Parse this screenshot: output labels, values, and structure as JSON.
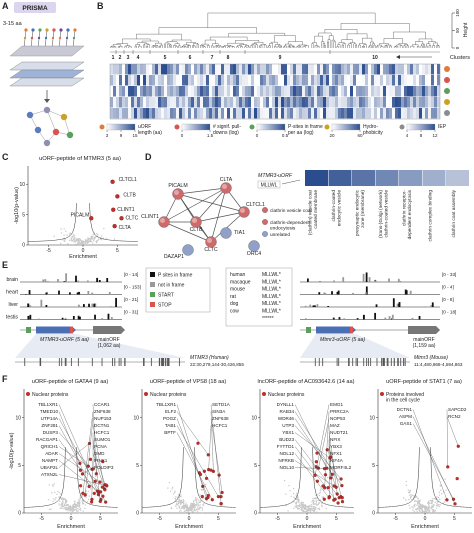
{
  "A": {
    "label": "A",
    "title": "PRISMA",
    "length": "3-15 aa"
  },
  "B": {
    "label": "B",
    "height_label": "Height",
    "height_ticks": [
      0,
      50,
      100
    ],
    "clusters": [
      "1",
      "2",
      "3",
      "4",
      "5",
      "6",
      "7",
      "8",
      "9",
      "10"
    ],
    "clusters_label": "Clusters",
    "legend": [
      {
        "lines": [
          "uORF",
          "length (aa)"
        ],
        "ticks": [
          3,
          9,
          15
        ],
        "color": "#e07b39"
      },
      {
        "lines": [
          "# signif. pull-",
          "downs (log)"
        ],
        "ticks": [
          0,
          1.5
        ],
        "color": "#d9534f"
      },
      {
        "lines": [
          "P-sites in frame",
          "per aa (log)"
        ],
        "ticks": [
          0,
          0.5
        ],
        "color": "#5aa05a"
      },
      {
        "lines": [
          "Hydro-",
          "phobicity"
        ],
        "ticks": [
          20,
          60
        ],
        "color": "#c9a227"
      },
      {
        "lines": [
          "IEP"
        ],
        "ticks": [
          4,
          8,
          12
        ],
        "color": "#8c8c8c"
      }
    ]
  },
  "C": {
    "label": "C",
    "title": "uORF-peptide of MTMR3 (5 aa)",
    "ylabel": "-log10(p-value)",
    "xlabel": "Enrichment",
    "xlim": [
      -8,
      8
    ],
    "ylim": [
      0,
      13
    ],
    "xticks": [
      -5,
      0,
      5
    ],
    "yticks": [
      0,
      5,
      10
    ],
    "hits": [
      "CLTCL1",
      "CLTB",
      "PICALM",
      "CLINT1",
      "CLTC",
      "CLTA"
    ]
  },
  "D": {
    "label": "D",
    "nodes": [
      "PICALM",
      "CLTA",
      "CLINT1",
      "CLTB",
      "CLTCL1",
      "TIA1",
      "CLTC",
      "DAZAP1",
      "ORC4"
    ],
    "legend": [
      [
        "clathrin vesicle coat"
      ],
      [
        "clathrin-dependent",
        "endocytosis"
      ],
      [
        "unrelated"
      ]
    ],
    "peptide": "MTMR3-uORF",
    "sequence": "MLLWL",
    "terms": [
      [
        "(clathrin) vesicle coat",
        "coated membrane"
      ],
      [
        "clathrin-coated",
        "endocytic vesicle"
      ],
      [
        "presynaptic endocytic",
        "zone (membrane)"
      ],
      [
        "(trans-)Golgi (network)",
        "clathrin-coated vesicle"
      ],
      [
        "clathrin receptor-",
        "dependent endocytosis"
      ],
      [
        "clathrin complex binding"
      ],
      [
        "clathrin coat assembly"
      ]
    ]
  },
  "E": {
    "label": "E",
    "tissues": [
      "brain",
      "heart",
      "liver",
      "testis"
    ],
    "human_ranges": [
      "[0 - 14]",
      "[0 - 153]",
      "[0 - 21]",
      "[0 - 31]"
    ],
    "mouse_ranges": [
      "[0 - 33]",
      "[0 - 4]",
      "[0 - 8]",
      "[0 - 18]"
    ],
    "legend": [
      "P sites in frame",
      "not in frame",
      "START",
      "STOP"
    ],
    "species": [
      "human",
      "macaque",
      "mouse",
      "rat",
      "dog",
      "cow"
    ],
    "alignment": [
      "MLLWL*",
      "MLLWL*",
      "MLLWL*",
      "MLLWL*",
      "MLLWL*",
      "MLLWL*",
      "******"
    ],
    "human_uorf": "MTMR3-uORF (5 aa)",
    "human_main": [
      "mainORF",
      "(1,062 aa)"
    ],
    "mouse_uorf": "Mtmr3-uORF (5 aa)",
    "mouse_main": [
      "mainORF",
      "(1,159 aa)"
    ],
    "human_locus": [
      "MTMR3 (Human)",
      "22:30,279,144-30,426,855"
    ],
    "mouse_locus": [
      "Mtmr3 (Mouse)",
      "11:4,480,868-4,594,863"
    ]
  },
  "F": {
    "label": "F",
    "ylabel": "-log10(p-value)",
    "xlabel": "Enrichment",
    "xlim": [
      -8,
      8
    ],
    "ylim": [
      0,
      13
    ],
    "xticks": [
      -5,
      0,
      5
    ],
    "yticks": [
      0,
      5,
      10
    ],
    "plots": [
      {
        "title": "uORF-peptide of GATA4 (9 aa)",
        "legend": [
          "Nuclear proteins"
        ],
        "hits": [
          "TBL1XR1",
          "TMED10",
          "UTP14A",
          "ZNF281",
          "DUSP3",
          "RACGAP1",
          "QRICH1",
          "ADAR",
          "NAMPT",
          "UBAP2L",
          "ATXN2L",
          "CCAR1",
          "ZNF638",
          "NUP153",
          "DCTN1",
          "HCFC1",
          "SUMO1",
          "PCNA",
          "DMD",
          "PINX1",
          "POLDIP3"
        ]
      },
      {
        "title": "uORF-peptide of VPS8 (18 aa)",
        "legend": [
          "Nuclear proteins"
        ],
        "hits": [
          "TBL1XR1",
          "ELF2",
          "POGZ",
          "TAB1",
          "BPTF",
          "SETD1A",
          "SIN3A",
          "ZNF638",
          "HCFC1"
        ]
      },
      {
        "title": "lncORF-peptide of AC093642.6 (14 aa)",
        "legend": [
          "Nuclear proteins"
        ],
        "hits": [
          "DYNLL1",
          "RAB34",
          "WDR46",
          "UTP3",
          "YBX1",
          "BUD23",
          "FYTTD1",
          "NOL12",
          "NFRKB",
          "NOL10",
          "EMG1",
          "PRRC2A",
          "NOP53",
          "MAZ",
          "NUDT21",
          "NFIX",
          "YBX3",
          "NFX1",
          "KIF4A",
          "MORF4L2"
        ]
      },
      {
        "title": "uORF-peptide of STAT1 (7 aa)",
        "legend": [
          "Proteins involved",
          "in the cell cycle"
        ],
        "hits": [
          "DCTN1",
          "ASPM",
          "GAS1",
          "SAPCD2",
          "RCN2"
        ]
      }
    ]
  }
}
